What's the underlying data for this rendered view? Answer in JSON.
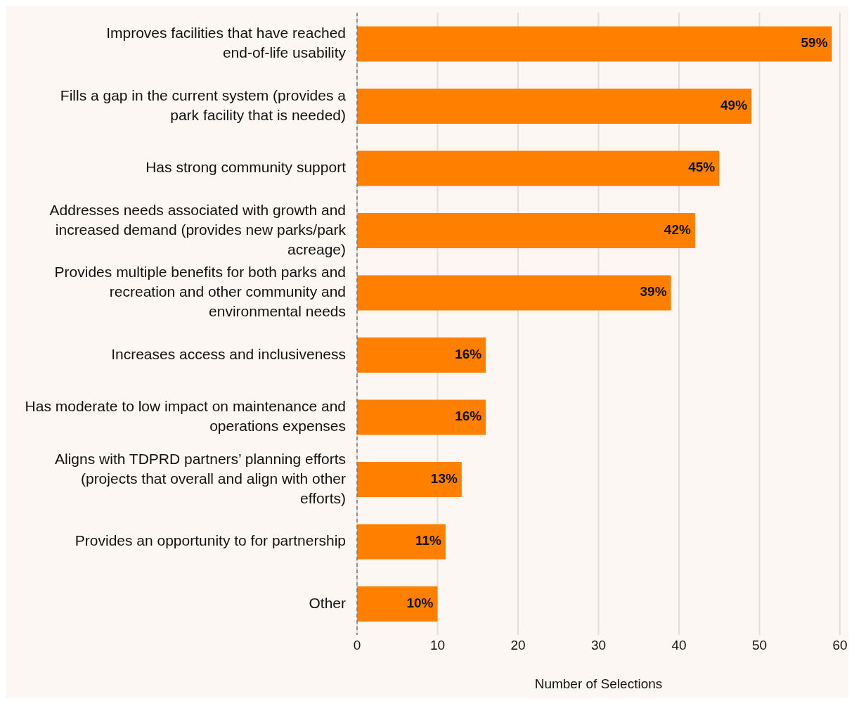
{
  "chart_data": {
    "type": "bar",
    "orientation": "horizontal",
    "xlabel": "Number of Selections",
    "categories": [
      "Improves facilities that have reached end-of-life usability",
      "Fills a gap in the current system (provides a park facility that is needed)",
      "Has strong community support",
      "Addresses needs associated with growth and increased demand (provides new parks/park acreage)",
      "Provides multiple benefits for both parks and recreation and other community and environmental needs",
      "Increases access and inclusiveness",
      "Has moderate to low impact on maintenance and operations expenses",
      "Aligns with TDPRD partners’ planning efforts (projects that overall and align with other efforts)",
      "Provides an opportunity to for partnership",
      "Other"
    ],
    "values": [
      59,
      49,
      45,
      42,
      39,
      16,
      16,
      13,
      11,
      10
    ],
    "value_labels": [
      "59%",
      "49%",
      "45%",
      "42%",
      "39%",
      "16%",
      "16%",
      "13%",
      "11%",
      "10%"
    ],
    "color": "#ff8000",
    "xlim": [
      0,
      60
    ],
    "xticks": [
      0,
      10,
      20,
      30,
      40,
      50,
      60
    ],
    "grid": "x",
    "legend": false
  }
}
